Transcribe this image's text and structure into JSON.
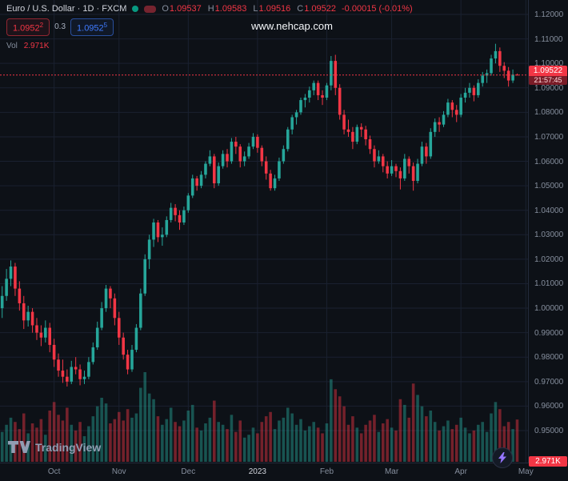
{
  "header": {
    "symbol_title": "Euro / U.S. Dollar · 1D · FXCM",
    "ohlc": {
      "o_label": "O",
      "o_value": "1.09537",
      "h_label": "H",
      "h_value": "1.09583",
      "l_label": "L",
      "l_value": "1.09516",
      "c_label": "C",
      "c_value": "1.09522",
      "change": "-0.00015 (-0.01%)"
    },
    "sell": {
      "base": "1.0952",
      "sup": "2"
    },
    "spread": "0.3",
    "buy": {
      "base": "1.0952",
      "sup": "5"
    },
    "vol_label": "Vol",
    "vol_value": "2.971K"
  },
  "watermark": "www.nehcap.com",
  "last_price": {
    "value": "1.09522",
    "countdown": "21:57:45"
  },
  "volume_badge": "2.971K",
  "footer": {
    "logo_text": "TradingView"
  },
  "colors": {
    "up": "#26a69a",
    "down": "#f23645",
    "blue": "#3f7bff",
    "bg": "#0d1117",
    "grid": "#1a2130",
    "text": "#d1d4dc",
    "muted": "#868f9e",
    "axis_border": "#232a3a",
    "countdown_bg": "#7a1c27",
    "status_dot": "#089981",
    "status_pill": "#76242f",
    "watermark": "#f5f7fa",
    "logo": "#919db3",
    "lightning": "#9575ff"
  },
  "chart_data": {
    "type": "candlestick",
    "title": "Euro / U.S. Dollar",
    "timeframe": "1D",
    "exchange": "FXCM",
    "ylim": [
      0.95,
      1.12
    ],
    "grid": true,
    "y_ticks": [
      "1.12000",
      "1.11000",
      "1.10000",
      "1.09000",
      "1.08000",
      "1.07000",
      "1.06000",
      "1.05000",
      "1.04000",
      "1.03000",
      "1.02000",
      "1.01000",
      "1.00000",
      "0.99000",
      "0.98000",
      "0.97000",
      "0.96000",
      "0.95000"
    ],
    "x_ticks": [
      {
        "label": "Oct",
        "index": 12
      },
      {
        "label": "Nov",
        "index": 27
      },
      {
        "label": "Dec",
        "index": 43
      },
      {
        "label": "2023",
        "index": 59,
        "bright": true
      },
      {
        "label": "Feb",
        "index": 75
      },
      {
        "label": "Mar",
        "index": 90
      },
      {
        "label": "Apr",
        "index": 106
      },
      {
        "label": "May",
        "index": 121
      }
    ],
    "last_price": 1.09522,
    "last_volume_k": 2.971,
    "volume_unit": "K",
    "columns": [
      "open",
      "high",
      "low",
      "close",
      "volume_k"
    ],
    "candles": [
      [
        1.0,
        1.009,
        0.996,
        1.005,
        2.1
      ],
      [
        1.005,
        1.016,
        1.003,
        1.012,
        2.6
      ],
      [
        1.012,
        1.0195,
        1.009,
        1.017,
        3.1
      ],
      [
        1.017,
        1.0185,
        1.005,
        1.008,
        2.8
      ],
      [
        1.008,
        1.011,
        0.999,
        1.002,
        2.3
      ],
      [
        1.002,
        1.005,
        0.9915,
        0.995,
        3.4
      ],
      [
        0.995,
        1.001,
        0.9925,
        0.9985,
        2.0
      ],
      [
        0.9985,
        1.0,
        0.99,
        0.993,
        2.7
      ],
      [
        0.993,
        0.996,
        0.987,
        0.99,
        2.4
      ],
      [
        0.99,
        0.993,
        0.9845,
        0.988,
        3.0
      ],
      [
        0.988,
        0.995,
        0.986,
        0.992,
        1.9
      ],
      [
        0.992,
        0.994,
        0.982,
        0.985,
        3.6
      ],
      [
        0.985,
        0.9875,
        0.976,
        0.979,
        4.2
      ],
      [
        0.979,
        0.9815,
        0.972,
        0.9745,
        3.3
      ],
      [
        0.9745,
        0.979,
        0.9695,
        0.972,
        2.9
      ],
      [
        0.972,
        0.975,
        0.968,
        0.97,
        3.8
      ],
      [
        0.97,
        0.9785,
        0.969,
        0.976,
        2.6
      ],
      [
        0.976,
        0.98,
        0.973,
        0.975,
        2.2
      ],
      [
        0.975,
        0.977,
        0.9685,
        0.971,
        2.8
      ],
      [
        0.971,
        0.9745,
        0.969,
        0.972,
        1.8
      ],
      [
        0.972,
        0.98,
        0.971,
        0.978,
        2.5
      ],
      [
        0.978,
        0.986,
        0.977,
        0.984,
        3.2
      ],
      [
        0.984,
        0.9945,
        0.983,
        0.992,
        3.9
      ],
      [
        0.992,
        1.0025,
        0.991,
        1.0,
        4.5
      ],
      [
        1.0,
        1.0095,
        0.9985,
        1.008,
        4.1
      ],
      [
        1.008,
        1.009,
        1.0,
        1.004,
        2.7
      ],
      [
        1.004,
        1.006,
        0.993,
        0.996,
        3.0
      ],
      [
        0.996,
        0.9985,
        0.985,
        0.988,
        3.5
      ],
      [
        0.988,
        0.99,
        0.979,
        0.981,
        2.9
      ],
      [
        0.981,
        0.983,
        0.973,
        0.975,
        3.7
      ],
      [
        0.975,
        0.985,
        0.974,
        0.983,
        3.1
      ],
      [
        0.983,
        0.9935,
        0.982,
        0.992,
        3.4
      ],
      [
        0.992,
        1.008,
        0.991,
        1.006,
        5.2
      ],
      [
        1.006,
        1.022,
        1.005,
        1.02,
        6.3
      ],
      [
        1.02,
        1.03,
        1.016,
        1.028,
        4.8
      ],
      [
        1.028,
        1.0365,
        1.025,
        1.035,
        4.4
      ],
      [
        1.035,
        1.036,
        1.027,
        1.029,
        3.2
      ],
      [
        1.029,
        1.033,
        1.0255,
        1.03,
        2.6
      ],
      [
        1.03,
        1.0375,
        1.029,
        1.036,
        3.0
      ],
      [
        1.036,
        1.043,
        1.035,
        1.041,
        3.8
      ],
      [
        1.041,
        1.0425,
        1.0355,
        1.038,
        2.8
      ],
      [
        1.038,
        1.04,
        1.032,
        1.035,
        2.5
      ],
      [
        1.035,
        1.0415,
        1.034,
        1.04,
        2.9
      ],
      [
        1.04,
        1.047,
        1.039,
        1.046,
        3.6
      ],
      [
        1.046,
        1.0545,
        1.045,
        1.053,
        4.0
      ],
      [
        1.053,
        1.054,
        1.048,
        1.05,
        2.4
      ],
      [
        1.05,
        1.056,
        1.049,
        1.0545,
        2.2
      ],
      [
        1.0545,
        1.06,
        1.053,
        1.059,
        2.7
      ],
      [
        1.059,
        1.0645,
        1.058,
        1.062,
        3.1
      ],
      [
        1.062,
        1.063,
        1.049,
        1.051,
        4.3
      ],
      [
        1.051,
        1.0595,
        1.05,
        1.058,
        2.8
      ],
      [
        1.058,
        1.0645,
        1.057,
        1.063,
        2.6
      ],
      [
        1.063,
        1.065,
        1.0575,
        1.06,
        2.3
      ],
      [
        1.06,
        1.0695,
        1.059,
        1.068,
        3.3
      ],
      [
        1.068,
        1.07,
        1.063,
        1.066,
        2.1
      ],
      [
        1.066,
        1.067,
        1.0575,
        1.06,
        2.9
      ],
      [
        1.06,
        1.064,
        1.058,
        1.062,
        1.7
      ],
      [
        1.062,
        1.0675,
        1.061,
        1.066,
        1.9
      ],
      [
        1.066,
        1.0715,
        1.065,
        1.07,
        2.4
      ],
      [
        1.07,
        1.071,
        1.0635,
        1.0655,
        2.0
      ],
      [
        1.0655,
        1.0665,
        1.058,
        1.06,
        2.8
      ],
      [
        1.06,
        1.062,
        1.0525,
        1.055,
        3.2
      ],
      [
        1.055,
        1.0565,
        1.048,
        1.049,
        3.5
      ],
      [
        1.049,
        1.0545,
        1.048,
        1.053,
        2.3
      ],
      [
        1.053,
        1.0615,
        1.052,
        1.06,
        2.9
      ],
      [
        1.06,
        1.0665,
        1.059,
        1.065,
        3.1
      ],
      [
        1.065,
        1.074,
        1.064,
        1.073,
        3.8
      ],
      [
        1.073,
        1.079,
        1.071,
        1.078,
        3.4
      ],
      [
        1.078,
        1.081,
        1.075,
        1.08,
        2.6
      ],
      [
        1.08,
        1.086,
        1.079,
        1.085,
        3.0
      ],
      [
        1.085,
        1.0875,
        1.082,
        1.086,
        2.2
      ],
      [
        1.086,
        1.0905,
        1.084,
        1.089,
        2.5
      ],
      [
        1.089,
        1.093,
        1.087,
        1.092,
        2.8
      ],
      [
        1.092,
        1.093,
        1.085,
        1.087,
        2.4
      ],
      [
        1.087,
        1.089,
        1.083,
        1.086,
        2.0
      ],
      [
        1.086,
        1.092,
        1.085,
        1.091,
        2.7
      ],
      [
        1.091,
        1.103,
        1.089,
        1.101,
        5.8
      ],
      [
        1.101,
        1.1035,
        1.087,
        1.09,
        5.1
      ],
      [
        1.09,
        1.0915,
        1.077,
        1.079,
        4.6
      ],
      [
        1.079,
        1.081,
        1.071,
        1.073,
        3.9
      ],
      [
        1.073,
        1.077,
        1.07,
        1.072,
        2.6
      ],
      [
        1.072,
        1.074,
        1.065,
        1.068,
        3.2
      ],
      [
        1.068,
        1.075,
        1.067,
        1.074,
        2.4
      ],
      [
        1.074,
        1.0755,
        1.07,
        1.073,
        2.0
      ],
      [
        1.073,
        1.0745,
        1.0665,
        1.069,
        2.6
      ],
      [
        1.069,
        1.0705,
        1.063,
        1.065,
        2.9
      ],
      [
        1.065,
        1.0665,
        1.0575,
        1.06,
        3.3
      ],
      [
        1.06,
        1.0645,
        1.059,
        1.062,
        2.1
      ],
      [
        1.062,
        1.063,
        1.0555,
        1.058,
        2.7
      ],
      [
        1.058,
        1.06,
        1.053,
        1.055,
        3.0
      ],
      [
        1.055,
        1.0605,
        1.054,
        1.058,
        2.4
      ],
      [
        1.058,
        1.059,
        1.0535,
        1.056,
        2.2
      ],
      [
        1.056,
        1.0575,
        1.0485,
        1.053,
        4.4
      ],
      [
        1.053,
        1.063,
        1.052,
        1.061,
        4.0
      ],
      [
        1.061,
        1.062,
        1.055,
        1.058,
        3.1
      ],
      [
        1.058,
        1.0595,
        1.048,
        1.052,
        5.5
      ],
      [
        1.052,
        1.061,
        1.051,
        1.059,
        4.7
      ],
      [
        1.059,
        1.068,
        1.058,
        1.066,
        3.9
      ],
      [
        1.066,
        1.0675,
        1.059,
        1.062,
        3.2
      ],
      [
        1.062,
        1.0735,
        1.061,
        1.072,
        3.6
      ],
      [
        1.072,
        1.0775,
        1.07,
        1.076,
        2.8
      ],
      [
        1.076,
        1.078,
        1.072,
        1.075,
        2.2
      ],
      [
        1.075,
        1.0805,
        1.074,
        1.079,
        2.5
      ],
      [
        1.079,
        1.0855,
        1.078,
        1.084,
        2.9
      ],
      [
        1.084,
        1.085,
        1.078,
        1.081,
        2.3
      ],
      [
        1.081,
        1.083,
        1.076,
        1.079,
        2.6
      ],
      [
        1.079,
        1.0875,
        1.078,
        1.086,
        3.1
      ],
      [
        1.086,
        1.09,
        1.084,
        1.088,
        2.4
      ],
      [
        1.088,
        1.092,
        1.086,
        1.09,
        2.0
      ],
      [
        1.09,
        1.091,
        1.0845,
        1.087,
        2.2
      ],
      [
        1.087,
        1.0935,
        1.086,
        1.092,
        2.6
      ],
      [
        1.092,
        1.0965,
        1.0905,
        1.095,
        2.8
      ],
      [
        1.095,
        1.0975,
        1.092,
        1.096,
        2.1
      ],
      [
        1.096,
        1.1035,
        1.095,
        1.102,
        3.4
      ],
      [
        1.102,
        1.108,
        1.1,
        1.105,
        4.2
      ],
      [
        1.105,
        1.1065,
        1.0965,
        1.099,
        3.7
      ],
      [
        1.099,
        1.1005,
        1.094,
        1.097,
        2.5
      ],
      [
        1.097,
        1.0985,
        1.0905,
        1.093,
        2.8
      ],
      [
        1.093,
        1.0975,
        1.092,
        1.0954,
        2.3
      ],
      [
        1.09537,
        1.09583,
        1.09516,
        1.09522,
        2.971
      ]
    ]
  }
}
